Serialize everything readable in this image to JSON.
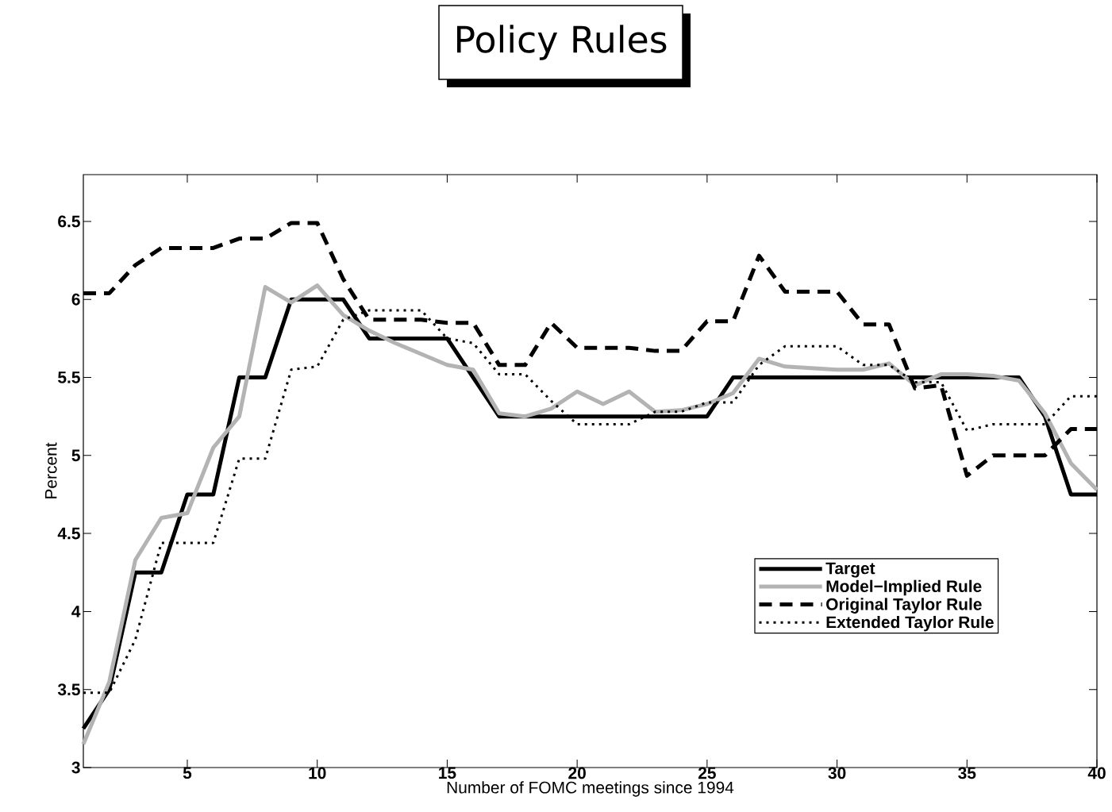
{
  "chart_data": {
    "type": "line",
    "title": "Policy Rules",
    "xlabel": "Number of FOMC meetings since 1994",
    "ylabel": "Percent",
    "x": [
      1,
      2,
      3,
      4,
      5,
      6,
      7,
      8,
      9,
      10,
      11,
      12,
      13,
      14,
      15,
      16,
      17,
      18,
      19,
      20,
      21,
      22,
      23,
      24,
      25,
      26,
      27,
      28,
      29,
      30,
      31,
      32,
      33,
      34,
      35,
      36,
      37,
      38,
      39,
      40
    ],
    "series": [
      {
        "name": "Target",
        "color": "#000000",
        "line_style": "solid",
        "values": [
          3.25,
          3.5,
          4.25,
          4.25,
          4.75,
          4.75,
          5.5,
          5.5,
          6,
          6,
          6,
          5.75,
          5.75,
          5.75,
          5.75,
          5.5,
          5.25,
          5.25,
          5.25,
          5.25,
          5.25,
          5.25,
          5.25,
          5.25,
          5.25,
          5.5,
          5.5,
          5.5,
          5.5,
          5.5,
          5.5,
          5.5,
          5.5,
          5.5,
          5.5,
          5.5,
          5.5,
          5.25,
          4.75,
          4.75
        ]
      },
      {
        "name": "Model−Implied Rule",
        "color": "#b3b3b3",
        "line_style": "solid",
        "values": [
          3.15,
          3.55,
          4.33,
          4.6,
          4.63,
          5.05,
          5.25,
          6.08,
          5.98,
          6.09,
          5.9,
          5.8,
          5.72,
          5.65,
          5.58,
          5.55,
          5.27,
          5.25,
          5.3,
          5.41,
          5.33,
          5.41,
          5.28,
          5.29,
          5.33,
          5.4,
          5.62,
          5.57,
          5.56,
          5.55,
          5.55,
          5.59,
          5.45,
          5.52,
          5.52,
          5.51,
          5.48,
          5.27,
          4.95,
          4.78
        ]
      },
      {
        "name": "Original Taylor Rule",
        "color": "#000000",
        "line_style": "dashed",
        "values": [
          6.04,
          6.04,
          6.22,
          6.33,
          6.33,
          6.33,
          6.39,
          6.39,
          6.49,
          6.49,
          6.13,
          5.87,
          5.87,
          5.87,
          5.85,
          5.85,
          5.58,
          5.58,
          5.85,
          5.69,
          5.69,
          5.69,
          5.67,
          5.67,
          5.86,
          5.86,
          6.28,
          6.05,
          6.05,
          6.05,
          5.84,
          5.84,
          5.43,
          5.45,
          4.87,
          5.0,
          5.0,
          5.0,
          5.17,
          5.17
        ]
      },
      {
        "name": "Extended Taylor Rule",
        "color": "#000000",
        "line_style": "dotted",
        "values": [
          3.48,
          3.48,
          3.82,
          4.44,
          4.44,
          4.44,
          4.98,
          4.98,
          5.55,
          5.57,
          5.87,
          5.93,
          5.93,
          5.93,
          5.75,
          5.72,
          5.52,
          5.52,
          5.35,
          5.2,
          5.2,
          5.2,
          5.28,
          5.28,
          5.34,
          5.34,
          5.58,
          5.7,
          5.7,
          5.7,
          5.58,
          5.58,
          5.47,
          5.47,
          5.16,
          5.2,
          5.2,
          5.2,
          5.38,
          5.38
        ]
      }
    ],
    "xlim": [
      1,
      40
    ],
    "xticks": [
      5,
      10,
      15,
      20,
      25,
      30,
      35,
      40
    ],
    "ylim": [
      3,
      6.8
    ],
    "yticks": [
      3,
      3.5,
      4,
      4.5,
      5,
      5.5,
      6,
      6.5
    ],
    "grid": false,
    "legend": "bottom right"
  }
}
